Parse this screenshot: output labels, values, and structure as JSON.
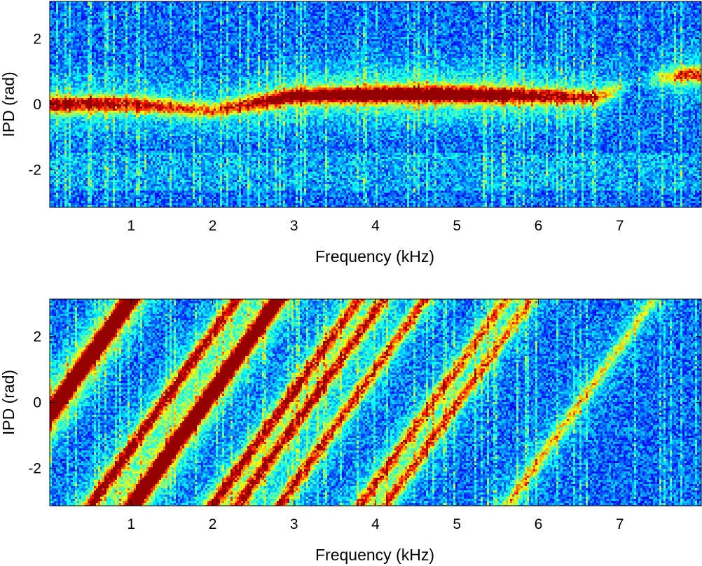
{
  "chart_data": [
    {
      "type": "heatmap",
      "title": "",
      "xlabel": "Frequency (kHz)",
      "ylabel": "IPD (rad)",
      "xlim": [
        0,
        8
      ],
      "ylim": [
        -3.1416,
        3.1416
      ],
      "x_ticks": [
        1,
        2,
        3,
        4,
        5,
        6,
        7
      ],
      "x_tick_labels": [
        "1",
        "2",
        "3",
        "4",
        "5",
        "6",
        "7"
      ],
      "y_ticks": [
        -2,
        0,
        2
      ],
      "y_tick_labels": [
        "-2",
        "0",
        "2"
      ],
      "colormap": "jet",
      "ridges": [
        {
          "points": [
            [
              0.2,
              0.0
            ],
            [
              1.0,
              0.0
            ],
            [
              2.0,
              -0.2
            ],
            [
              3.0,
              0.25
            ],
            [
              4.0,
              0.3
            ],
            [
              5.0,
              0.3
            ],
            [
              6.0,
              0.25
            ],
            [
              6.7,
              0.2
            ],
            [
              7.2,
              0.7
            ],
            [
              7.8,
              0.9
            ]
          ],
          "intensity": [
            0.7,
            0.6,
            0.45,
            0.8,
            0.95,
            0.95,
            0.7,
            0.55,
            0.0,
            0.55
          ]
        }
      ]
    },
    {
      "type": "heatmap",
      "title": "",
      "xlabel": "Frequency (kHz)",
      "ylabel": "IPD (rad)",
      "xlim": [
        0,
        8
      ],
      "ylim": [
        -3.1416,
        3.1416
      ],
      "x_ticks": [
        1,
        2,
        3,
        4,
        5,
        6,
        7
      ],
      "x_tick_labels": [
        "1",
        "2",
        "3",
        "4",
        "5",
        "6",
        "7"
      ],
      "y_ticks": [
        -2,
        0,
        2
      ],
      "y_tick_labels": [
        "-2",
        "0",
        "2"
      ],
      "colormap": "jet",
      "phase_wrap_slope_rad_per_khz": 3.47,
      "phase_wrap_offset_rad": 0.6,
      "wrap_lines_khz_at_ipd_0": [
        0.1,
        1.9,
        3.2,
        4.7
      ]
    }
  ]
}
